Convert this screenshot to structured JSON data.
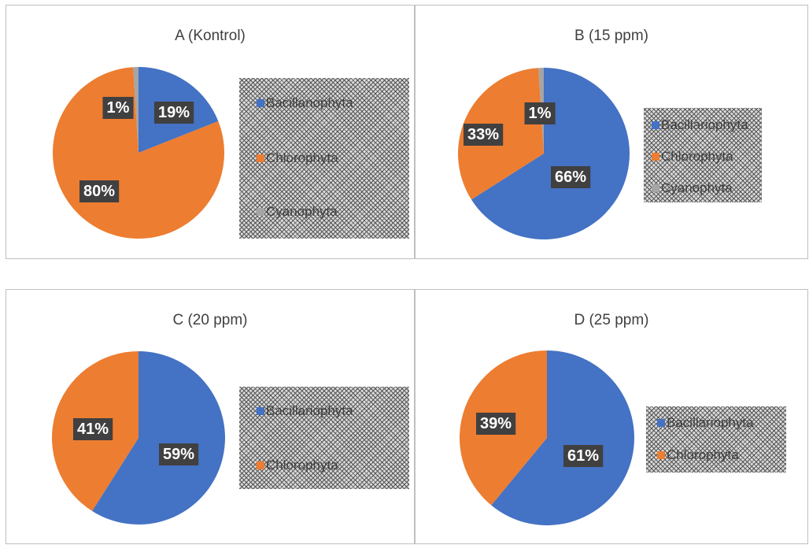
{
  "chart_data": [
    {
      "type": "pie",
      "title": "A (Kontrol)",
      "categories": [
        "Bacillariophyta",
        "Chlorophyta",
        "Cyanophyta"
      ],
      "values": [
        19,
        80,
        1
      ],
      "labels": [
        "19%",
        "80%",
        "1%"
      ],
      "legend": [
        "Bacillanophyta",
        "Chlorophyta",
        "Cyanophyta"
      ],
      "legend_position": "right"
    },
    {
      "type": "pie",
      "title": "B (15 ppm)",
      "categories": [
        "Bacillariophyta",
        "Chlorophyta",
        "Cyanophyta"
      ],
      "values": [
        66,
        33,
        1
      ],
      "labels": [
        "66%",
        "33%",
        "1%"
      ],
      "legend": [
        "Bacillariophyta",
        "Chlorophyta",
        "Cyanophyta"
      ],
      "legend_position": "right"
    },
    {
      "type": "pie",
      "title": "C (20 ppm)",
      "categories": [
        "Bacillariophyta",
        "Chlorophyta"
      ],
      "values": [
        59,
        41
      ],
      "labels": [
        "59%",
        "41%"
      ],
      "legend": [
        "Bacillariophyta",
        "Chlorophyta"
      ],
      "legend_position": "right"
    },
    {
      "type": "pie",
      "title": "D (25 ppm)",
      "categories": [
        "Bacillariophyta",
        "Chlorophyta"
      ],
      "values": [
        61,
        39
      ],
      "labels": [
        "61%",
        "39%"
      ],
      "legend": [
        "Bacillariophyta",
        "Chlorophyta"
      ],
      "legend_position": "right"
    }
  ],
  "colors": {
    "Bacillariophyta": "#4472c4",
    "Chlorophyta": "#ed7d31",
    "Cyanophyta": "#a5a5a5",
    "label_background": "#404040"
  }
}
